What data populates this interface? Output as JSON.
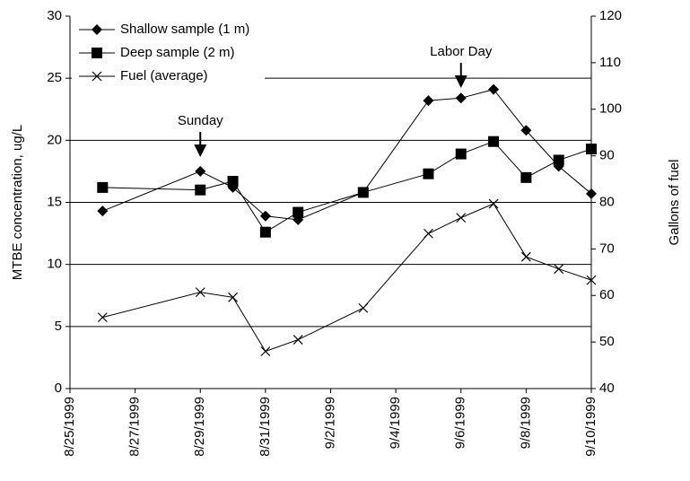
{
  "chart_data": {
    "type": "line",
    "x": [
      "1999-08-26",
      "1999-08-29",
      "1999-08-30",
      "1999-08-31",
      "1999-09-01",
      "1999-09-03",
      "1999-09-05",
      "1999-09-06",
      "1999-09-07",
      "1999-09-08",
      "1999-09-09",
      "1999-09-10"
    ],
    "series": [
      {
        "name": "Shallow sample (1 m)",
        "color": "#000000",
        "marker": "diamond",
        "values": [
          14.3,
          17.5,
          16.2,
          13.9,
          13.6,
          15.8,
          23.2,
          23.4,
          24.1,
          20.8,
          17.9,
          15.7
        ]
      },
      {
        "name": "Deep sample (2 m)",
        "color": "#000000",
        "marker": "square",
        "values": [
          16.2,
          16.0,
          16.7,
          12.6,
          14.2,
          15.8,
          17.3,
          18.9,
          19.9,
          17.0,
          18.4,
          19.3
        ]
      },
      {
        "name": "Fuel (average)",
        "color": "#000000",
        "marker": "x",
        "axis": "y2",
        "values": [
          55.3,
          60.7,
          59.6,
          48.0,
          50.5,
          57.3,
          73.3,
          76.7,
          79.7,
          68.3,
          65.7,
          63.3
        ]
      }
    ],
    "ylabel": "MTBE concentration, ug/L",
    "y2label": "Gallons of fuel",
    "xlim": [
      "1999-08-25",
      "1999-09-10"
    ],
    "xticks": [
      {
        "value": "1999-08-25",
        "label": "8/25/1999"
      },
      {
        "value": "1999-08-27",
        "label": "8/27/1999"
      },
      {
        "value": "1999-08-29",
        "label": "8/29/1999"
      },
      {
        "value": "1999-08-31",
        "label": "8/31/1999"
      },
      {
        "value": "1999-09-02",
        "label": "9/2/1999"
      },
      {
        "value": "1999-09-04",
        "label": "9/4/1999"
      },
      {
        "value": "1999-09-06",
        "label": "9/6/1999"
      },
      {
        "value": "1999-09-08",
        "label": "9/8/1999"
      },
      {
        "value": "1999-09-10",
        "label": "9/10/1999"
      }
    ],
    "ylim": [
      0,
      30
    ],
    "yticks": [
      0,
      5,
      10,
      15,
      20,
      25,
      30
    ],
    "y2lim": [
      40,
      120
    ],
    "y2ticks": [
      40,
      50,
      60,
      70,
      80,
      90,
      100,
      110,
      120
    ],
    "grid": true,
    "legend": "upper left",
    "annotations": [
      {
        "text": "Sunday",
        "x": "1999-08-29"
      },
      {
        "text": "Labor Day",
        "x": "1999-09-06"
      }
    ]
  }
}
